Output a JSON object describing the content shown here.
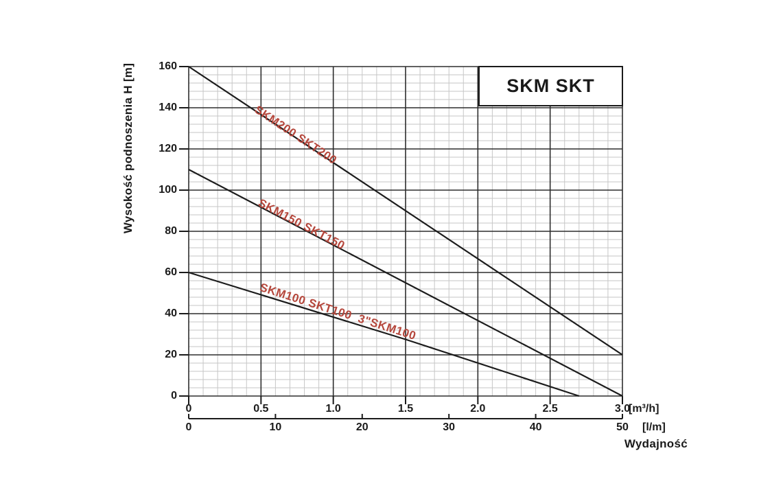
{
  "chart_data": {
    "type": "line",
    "title": "SKM SKT",
    "xlabel": "Wydajność",
    "ylabel": "Wysokość podnoszenia H [m]",
    "x_axis_primary": {
      "unit": "[m³/h]",
      "min": 0,
      "max": 3.0,
      "major_step": 0.5,
      "minor_step": 0.1,
      "tick_labels": [
        "0",
        "0.5",
        "1.0",
        "1.5",
        "2.0",
        "2.5",
        "3.0"
      ]
    },
    "x_axis_secondary": {
      "unit": "[l/m]",
      "min": 0,
      "max": 50,
      "major_step": 10,
      "tick_labels": [
        "0",
        "10",
        "20",
        "30",
        "40",
        "50"
      ]
    },
    "y_axis": {
      "min": 0,
      "max": 160,
      "major_step": 20,
      "minor_step": 4,
      "tick_labels": [
        "0",
        "20",
        "40",
        "60",
        "80",
        "100",
        "120",
        "140",
        "160"
      ]
    },
    "grid": {
      "major_color": "#2d2d2d",
      "minor_color": "#c6c6c6",
      "on": true
    },
    "line_color": "#1c1c1c",
    "series_label_color": "#b5473c",
    "series": [
      {
        "name": "SKM200 SKT200",
        "points": [
          [
            0,
            160
          ],
          [
            3.0,
            20
          ]
        ]
      },
      {
        "name": "SKM150 SKT150",
        "points": [
          [
            0,
            110
          ],
          [
            3.0,
            0
          ]
        ]
      },
      {
        "name": "SKM100 SKT100  3\"SKM100",
        "points": [
          [
            0,
            60
          ],
          [
            1.5,
            27.5
          ],
          [
            2.7,
            0
          ]
        ]
      }
    ]
  }
}
